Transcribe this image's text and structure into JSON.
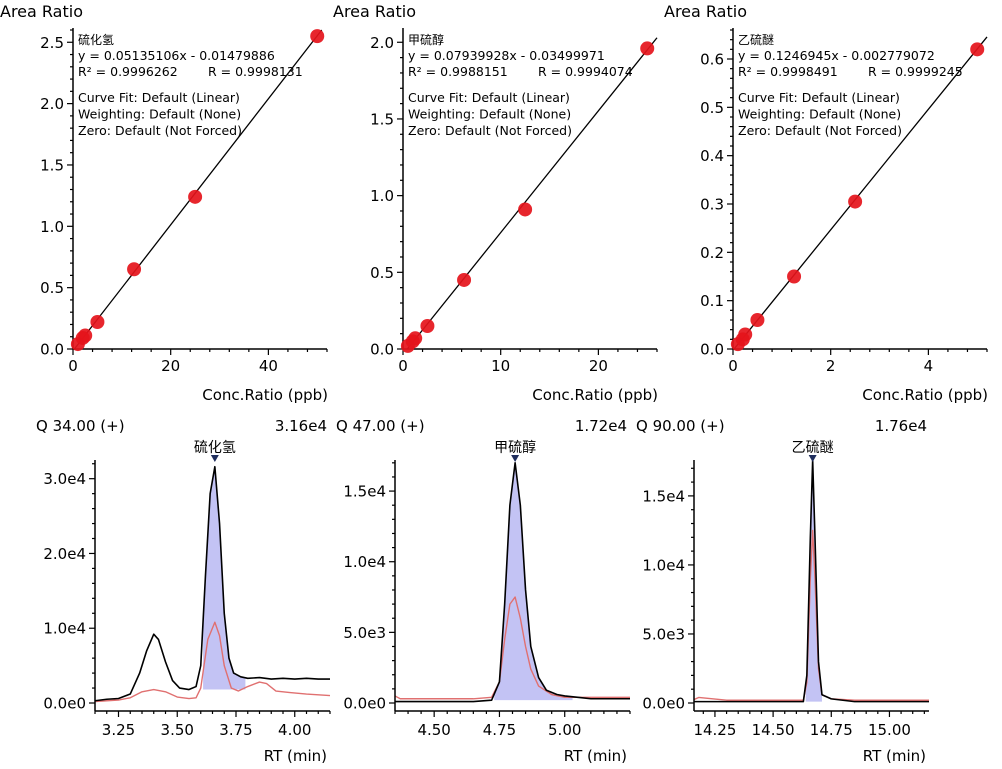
{
  "chart_data": [
    {
      "type": "scatter",
      "id": "cal-h2s",
      "ylabel": "Area Ratio",
      "xlabel": "Conc.Ratio (ppb)",
      "compound": "硫化氢",
      "equation": "y = 0.05135106x - 0.01479886",
      "r2_text": "R² = 0.9996262",
      "r_text": "R = 0.9998131",
      "fit_lines": [
        "Curve Fit: Default (Linear)",
        "Weighting: Default (None)",
        "Zero: Default (Not Forced)"
      ],
      "slope": 0.05135106,
      "intercept": -0.01479886,
      "xlim": [
        0,
        52
      ],
      "ylim": [
        0,
        2.6
      ],
      "xticks": [
        0,
        20,
        40
      ],
      "xtick_labels": [
        "0",
        "20",
        "40"
      ],
      "yticks": [
        0.0,
        0.5,
        1.0,
        1.5,
        2.0,
        2.5
      ],
      "ytick_labels": [
        "0.0",
        "0.5",
        "1.0",
        "1.5",
        "2.0",
        "2.5"
      ],
      "x": [
        1.0,
        2.0,
        2.5,
        5.0,
        12.5,
        25.0,
        50.0
      ],
      "y": [
        0.04,
        0.09,
        0.11,
        0.22,
        0.65,
        1.24,
        2.55
      ],
      "grid": false
    },
    {
      "type": "scatter",
      "id": "cal-mesh",
      "ylabel": "Area Ratio",
      "xlabel": "Conc.Ratio (ppb)",
      "compound": "甲硫醇",
      "equation": "y = 0.07939928x - 0.03499971",
      "r2_text": "R² = 0.9988151",
      "r_text": "R = 0.9994074",
      "fit_lines": [
        "Curve Fit: Default (Linear)",
        "Weighting: Default (None)",
        "Zero: Default (Not Forced)"
      ],
      "slope": 0.07939928,
      "intercept": -0.03499971,
      "xlim": [
        0,
        26
      ],
      "ylim": [
        0,
        2.08
      ],
      "xticks": [
        0,
        10,
        20
      ],
      "xtick_labels": [
        "0",
        "10",
        "20"
      ],
      "yticks": [
        0.0,
        0.5,
        1.0,
        1.5,
        2.0
      ],
      "ytick_labels": [
        "0.0",
        "0.5",
        "1.0",
        "1.5",
        "2.0"
      ],
      "x": [
        0.5,
        1.0,
        1.25,
        2.5,
        6.25,
        12.5,
        25.0
      ],
      "y": [
        0.02,
        0.05,
        0.07,
        0.15,
        0.45,
        0.91,
        1.96
      ],
      "grid": false
    },
    {
      "type": "scatter",
      "id": "cal-ethsulfide",
      "ylabel": "Area Ratio",
      "xlabel": "Conc.Ratio (ppb)",
      "compound": "乙硫醚",
      "equation": "y = 0.1246945x - 0.002779072",
      "r2_text": "R² = 0.9998491",
      "r_text": "R = 0.9999245",
      "fit_lines": [
        "Curve Fit: Default (Linear)",
        "Weighting: Default (None)",
        "Zero: Default (Not Forced)"
      ],
      "slope": 0.1246945,
      "intercept": -0.002779072,
      "xlim": [
        0,
        5.2
      ],
      "ylim": [
        0,
        0.66
      ],
      "xticks": [
        0,
        2,
        4
      ],
      "xtick_labels": [
        "0",
        "2",
        "4"
      ],
      "yticks": [
        0.0,
        0.1,
        0.2,
        0.3,
        0.4,
        0.5,
        0.6
      ],
      "ytick_labels": [
        "0.0",
        "0.1",
        "0.2",
        "0.3",
        "0.4",
        "0.5",
        "0.6"
      ],
      "x": [
        0.1,
        0.2,
        0.25,
        0.5,
        1.25,
        2.5,
        5.0
      ],
      "y": [
        0.01,
        0.02,
        0.03,
        0.06,
        0.15,
        0.305,
        0.62
      ],
      "grid": false
    },
    {
      "type": "line",
      "id": "chrom-h2s",
      "ion_label": "Q 34.00 (+)",
      "max_label": "3.16e4",
      "peak_label": "硫化氢",
      "xlabel": "RT (min)",
      "xlim": [
        3.15,
        4.15
      ],
      "ylim": [
        0,
        32500
      ],
      "xticks": [
        3.25,
        3.5,
        3.75,
        4.0
      ],
      "xtick_labels": [
        "3.25",
        "3.50",
        "3.75",
        "4.00"
      ],
      "yticks": [
        0,
        10000,
        20000,
        30000
      ],
      "ytick_labels": [
        "0.0e0",
        "1.0e4",
        "2.0e4",
        "3.0e4"
      ],
      "peak_rt": 3.66,
      "integration_range": [
        3.61,
        3.79
      ],
      "integration_baseline": 1800,
      "series": [
        {
          "name": "quant",
          "color": "#000000",
          "x": [
            3.15,
            3.2,
            3.25,
            3.3,
            3.34,
            3.37,
            3.4,
            3.42,
            3.45,
            3.48,
            3.51,
            3.55,
            3.58,
            3.6,
            3.62,
            3.64,
            3.66,
            3.68,
            3.7,
            3.72,
            3.74,
            3.77,
            3.8,
            3.85,
            3.9,
            3.95,
            4.0,
            4.05,
            4.1,
            4.15
          ],
          "y": [
            300,
            500,
            600,
            1200,
            4000,
            7000,
            9200,
            8500,
            5500,
            3000,
            2000,
            1800,
            2200,
            5000,
            17000,
            28000,
            31600,
            24000,
            12000,
            6000,
            4000,
            3500,
            3300,
            3400,
            3200,
            3300,
            3200,
            3300,
            3200,
            3200
          ]
        },
        {
          "name": "qualifier",
          "color": "#e07070",
          "x": [
            3.15,
            3.2,
            3.25,
            3.3,
            3.35,
            3.4,
            3.45,
            3.5,
            3.55,
            3.58,
            3.6,
            3.63,
            3.66,
            3.68,
            3.7,
            3.73,
            3.76,
            3.8,
            3.85,
            3.88,
            3.92,
            3.98,
            4.05,
            4.1,
            4.15
          ],
          "y": [
            200,
            300,
            400,
            700,
            1500,
            1800,
            1500,
            800,
            600,
            700,
            2000,
            8500,
            10800,
            9000,
            5000,
            2000,
            1600,
            2200,
            2800,
            2600,
            1600,
            1400,
            1200,
            1100,
            1000
          ]
        }
      ]
    },
    {
      "type": "line",
      "id": "chrom-mesh",
      "ion_label": "Q 47.00 (+)",
      "max_label": "1.72e4",
      "peak_label": "甲硫醇",
      "xlabel": "RT (min)",
      "xlim": [
        4.35,
        5.25
      ],
      "ylim": [
        0,
        17200
      ],
      "xticks": [
        4.5,
        4.75,
        5.0
      ],
      "xtick_labels": [
        "4.50",
        "4.75",
        "5.00"
      ],
      "yticks": [
        0,
        5000,
        10000,
        15000
      ],
      "ytick_labels": [
        "0.0e0",
        "5.0e3",
        "1.0e4",
        "1.5e4"
      ],
      "peak_rt": 4.81,
      "integration_range": [
        4.73,
        5.03
      ],
      "integration_baseline": 200,
      "series": [
        {
          "name": "quant",
          "color": "#000000",
          "x": [
            4.35,
            4.5,
            4.65,
            4.72,
            4.75,
            4.77,
            4.79,
            4.81,
            4.83,
            4.85,
            4.87,
            4.9,
            4.93,
            4.97,
            5.0,
            5.05,
            5.1,
            5.15,
            5.2,
            5.25
          ],
          "y": [
            100,
            100,
            100,
            200,
            1500,
            7000,
            14000,
            17000,
            14000,
            8000,
            4000,
            1800,
            900,
            600,
            500,
            400,
            300,
            300,
            300,
            300
          ]
        },
        {
          "name": "qualifier",
          "color": "#e07070",
          "x": [
            4.35,
            4.37,
            4.5,
            4.65,
            4.72,
            4.75,
            4.77,
            4.79,
            4.81,
            4.83,
            4.85,
            4.87,
            4.9,
            4.95,
            5.0,
            5.05,
            5.1,
            5.15,
            5.2,
            5.25
          ],
          "y": [
            500,
            300,
            300,
            300,
            400,
            1500,
            4500,
            7000,
            7500,
            6000,
            4000,
            2400,
            1200,
            600,
            400,
            400,
            400,
            400,
            400,
            400
          ]
        }
      ]
    },
    {
      "type": "line",
      "id": "chrom-ethsulfide",
      "ion_label": "Q 90.00 (+)",
      "max_label": "1.76e4",
      "peak_label": "乙硫醚",
      "xlabel": "RT (min)",
      "xlim": [
        14.16,
        15.17
      ],
      "ylim": [
        0,
        17600
      ],
      "xticks": [
        14.25,
        14.5,
        14.75,
        15.0
      ],
      "xtick_labels": [
        "14.25",
        "14.50",
        "14.75",
        "15.00"
      ],
      "yticks": [
        0,
        5000,
        10000,
        15000
      ],
      "ytick_labels": [
        "0.0e0",
        "5.0e3",
        "1.0e4",
        "1.5e4"
      ],
      "peak_rt": 14.67,
      "integration_range": [
        14.64,
        14.71
      ],
      "integration_baseline": 100,
      "series": [
        {
          "name": "quant",
          "color": "#000000",
          "x": [
            14.16,
            14.3,
            14.5,
            14.63,
            14.645,
            14.66,
            14.67,
            14.68,
            14.695,
            14.71,
            14.75,
            14.85,
            15.0,
            15.17
          ],
          "y": [
            100,
            100,
            100,
            100,
            2000,
            12000,
            17600,
            12000,
            3000,
            600,
            300,
            100,
            100,
            100
          ]
        },
        {
          "name": "qualifier",
          "color": "#e07070",
          "x": [
            14.16,
            14.18,
            14.3,
            14.5,
            14.63,
            14.645,
            14.66,
            14.67,
            14.68,
            14.695,
            14.71,
            14.75,
            14.85,
            15.0,
            15.17
          ],
          "y": [
            250,
            400,
            200,
            200,
            200,
            1500,
            9000,
            12500,
            9000,
            2500,
            600,
            300,
            200,
            200,
            200
          ]
        }
      ]
    }
  ]
}
